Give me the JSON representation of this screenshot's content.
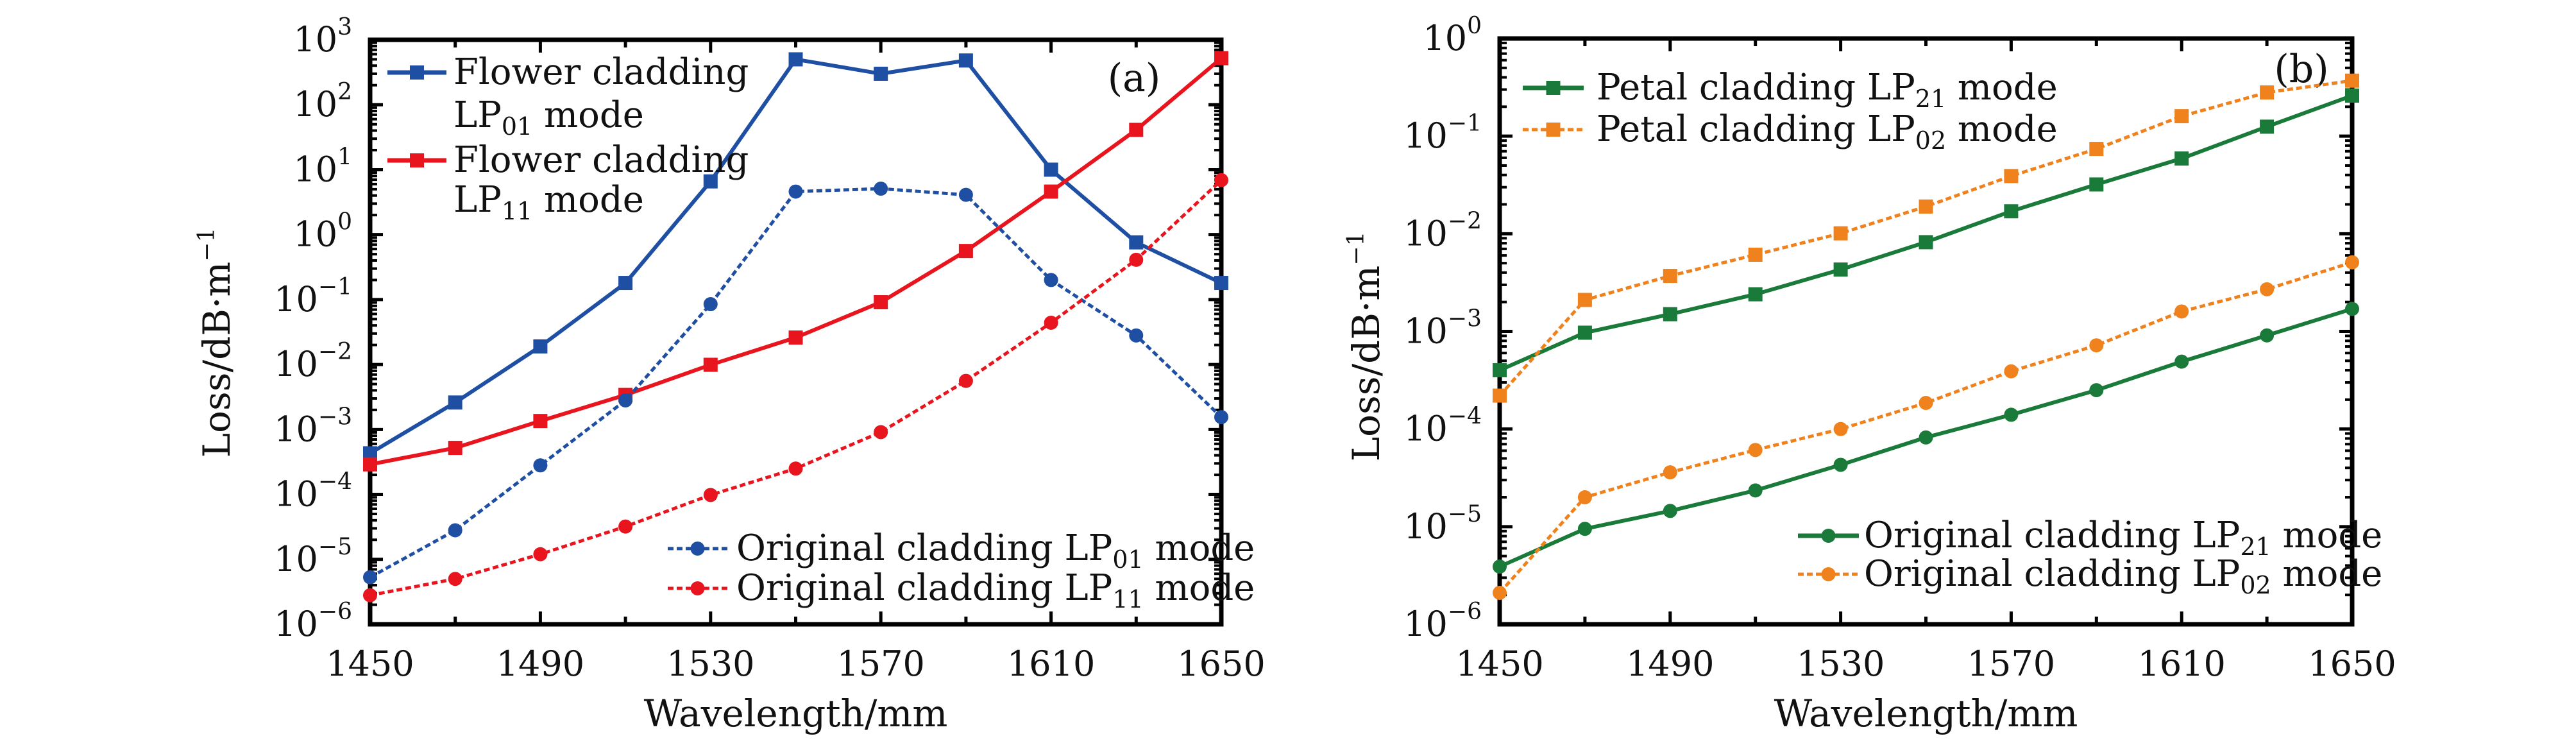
{
  "figure": {
    "panels": [
      "(a)",
      "(b)"
    ]
  },
  "chart_data": [
    {
      "type": "line",
      "panel_label": "(a)",
      "title": "",
      "xlabel": "Wavelength/mm",
      "ylabel": "Loss/dB·m⁻¹",
      "ylabel_parts": {
        "main": "Loss/dB·m",
        "sup": "−1"
      },
      "yscale": "log",
      "xlim": [
        1450,
        1650
      ],
      "ylim": [
        1e-06,
        1000.0
      ],
      "x_ticks": [
        1450,
        1490,
        1530,
        1570,
        1610,
        1650
      ],
      "x_tick_labels": [
        "1450",
        "1490",
        "1530",
        "1570",
        "1610",
        "1650"
      ],
      "y_tick_exponents": [
        3,
        2,
        1,
        0,
        -1,
        -2,
        -3,
        -4,
        -5,
        -6
      ],
      "y_tick_base": "10",
      "grid": false,
      "x": [
        1450,
        1470,
        1490,
        1510,
        1530,
        1550,
        1570,
        1590,
        1610,
        1630,
        1650
      ],
      "series": [
        {
          "name": "Flower cladding LP01 mode",
          "legend_lines": [
            "Flower cladding",
            "LP|01| mode"
          ],
          "color": "#1f4fa3",
          "style": "solid",
          "marker": "square",
          "legend": "top-left",
          "values": [
            0.00043,
            0.0026,
            0.019,
            0.18,
            6.6,
            500,
            300,
            480,
            10,
            0.76,
            0.18
          ]
        },
        {
          "name": "Flower cladding LP11 mode",
          "legend_lines": [
            "Flower cladding",
            "LP|11| mode"
          ],
          "color": "#e8141e",
          "style": "solid",
          "marker": "square",
          "legend": "top-left",
          "values": [
            0.00029,
            0.00052,
            0.00135,
            0.0034,
            0.0099,
            0.026,
            0.091,
            0.56,
            4.6,
            41,
            520
          ]
        },
        {
          "name": "Original cladding LP01 mode",
          "legend_lines": [
            "Original cladding LP|01| mode"
          ],
          "color": "#1f4fa3",
          "style": "dashed",
          "marker": "circle",
          "legend": "bottom-right",
          "values": [
            5.3e-06,
            2.8e-05,
            0.00028,
            0.0028,
            0.085,
            4.6,
            5.1,
            4.1,
            0.2,
            0.028,
            0.00155
          ]
        },
        {
          "name": "Original cladding LP11 mode",
          "legend_lines": [
            "Original cladding LP|11| mode"
          ],
          "color": "#e8141e",
          "style": "dashed",
          "marker": "circle",
          "legend": "bottom-right",
          "values": [
            2.8e-06,
            5e-06,
            1.2e-05,
            3.2e-05,
            9.8e-05,
            0.00025,
            0.00091,
            0.0056,
            0.044,
            0.41,
            6.9
          ]
        }
      ]
    },
    {
      "type": "line",
      "panel_label": "(b)",
      "title": "",
      "xlabel": "Wavelength/mm",
      "ylabel": "Loss/dB·m⁻¹",
      "ylabel_parts": {
        "main": "Loss/dB·m",
        "sup": "−1"
      },
      "yscale": "log",
      "xlim": [
        1450,
        1650
      ],
      "ylim": [
        1e-06,
        1.0
      ],
      "x_ticks": [
        1450,
        1490,
        1530,
        1570,
        1610,
        1650
      ],
      "x_tick_labels": [
        "1450",
        "1490",
        "1530",
        "1570",
        "1610",
        "1650"
      ],
      "y_tick_exponents": [
        0,
        -1,
        -2,
        -3,
        -4,
        -5,
        -6
      ],
      "y_tick_base": "10",
      "grid": false,
      "x": [
        1450,
        1470,
        1490,
        1510,
        1530,
        1550,
        1570,
        1590,
        1610,
        1630,
        1650
      ],
      "series": [
        {
          "name": "Petal cladding LP21 mode",
          "legend_lines": [
            "Petal cladding LP|21| mode"
          ],
          "color": "#1a7a3a",
          "style": "solid",
          "marker": "square",
          "legend": "top-left",
          "values": [
            0.0004,
            0.00097,
            0.0015,
            0.0024,
            0.0043,
            0.0082,
            0.017,
            0.032,
            0.059,
            0.125,
            0.26
          ]
        },
        {
          "name": "Petal cladding LP02 mode",
          "legend_lines": [
            "Petal cladding LP|02| mode"
          ],
          "color": "#f0821e",
          "style": "dashed",
          "marker": "square",
          "legend": "top-left",
          "values": [
            0.00022,
            0.0021,
            0.0037,
            0.0061,
            0.0101,
            0.019,
            0.039,
            0.074,
            0.16,
            0.28,
            0.37
          ]
        },
        {
          "name": "Original cladding LP21 mode",
          "legend_lines": [
            "Original cladding LP|21| mode"
          ],
          "color": "#1a7a3a",
          "style": "solid",
          "marker": "circle",
          "legend": "bottom-right",
          "values": [
            3.9e-06,
            9.5e-06,
            1.45e-05,
            2.35e-05,
            4.3e-05,
            8.2e-05,
            0.00014,
            0.00025,
            0.00049,
            0.00091,
            0.0017
          ]
        },
        {
          "name": "Original cladding LP02 mode",
          "legend_lines": [
            "Original cladding LP|02| mode"
          ],
          "color": "#f0821e",
          "style": "dashed",
          "marker": "circle",
          "legend": "bottom-right",
          "values": [
            2.1e-06,
            2e-05,
            3.6e-05,
            6.1e-05,
            0.0001,
            0.000185,
            0.00039,
            0.00072,
            0.0016,
            0.0027,
            0.0051
          ]
        }
      ]
    }
  ]
}
